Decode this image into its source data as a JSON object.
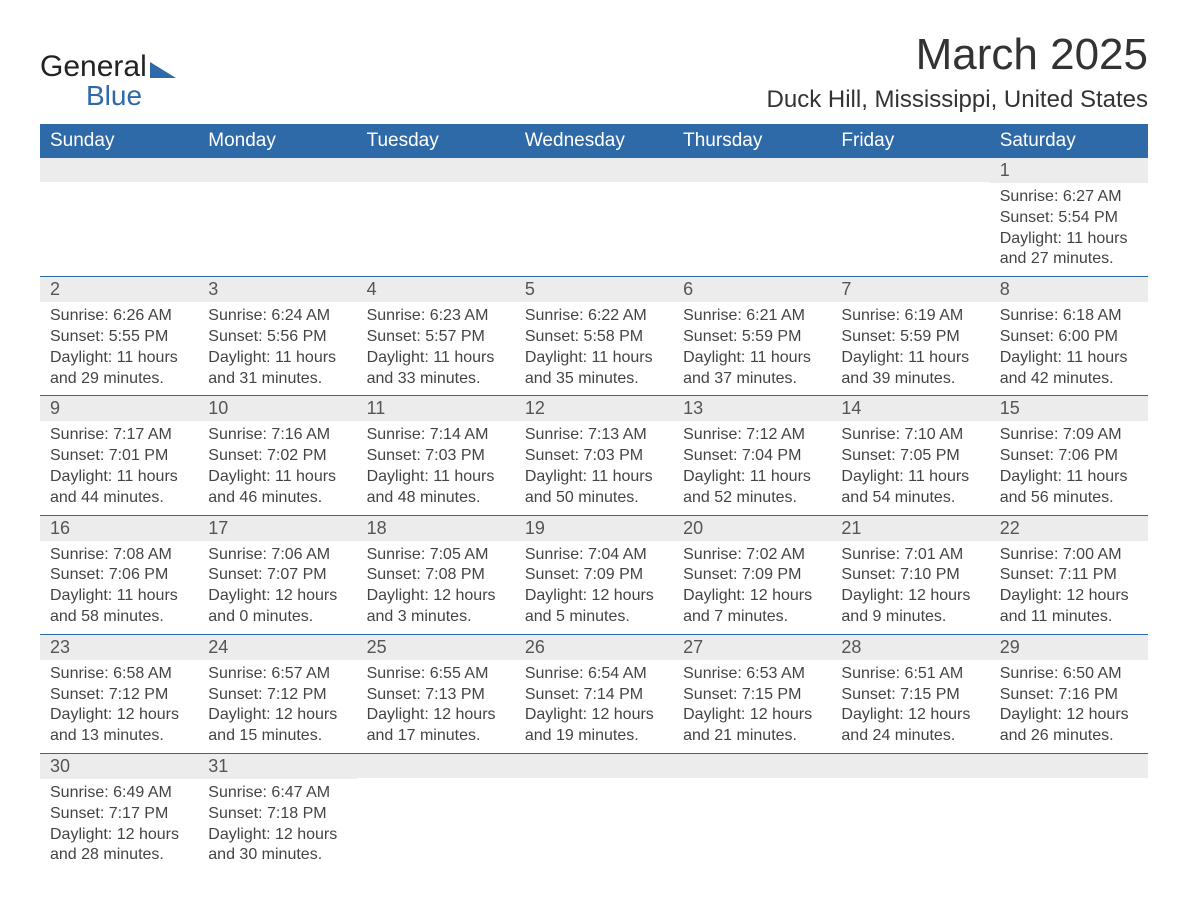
{
  "logo": {
    "general": "General",
    "blue": "Blue"
  },
  "header": {
    "month_title": "March 2025",
    "location": "Duck Hill, Mississippi, United States"
  },
  "weekdays": [
    "Sunday",
    "Monday",
    "Tuesday",
    "Wednesday",
    "Thursday",
    "Friday",
    "Saturday"
  ],
  "colors": {
    "header_bg": "#2f6aa8",
    "header_fg": "#ffffff",
    "daynum_bg": "#ececec",
    "row_border": "#2f6aa8",
    "text": "#333333"
  },
  "weeks": [
    [
      null,
      null,
      null,
      null,
      null,
      null,
      {
        "n": "1",
        "sunrise": "Sunrise: 6:27 AM",
        "sunset": "Sunset: 5:54 PM",
        "dl1": "Daylight: 11 hours",
        "dl2": "and 27 minutes."
      }
    ],
    [
      {
        "n": "2",
        "sunrise": "Sunrise: 6:26 AM",
        "sunset": "Sunset: 5:55 PM",
        "dl1": "Daylight: 11 hours",
        "dl2": "and 29 minutes."
      },
      {
        "n": "3",
        "sunrise": "Sunrise: 6:24 AM",
        "sunset": "Sunset: 5:56 PM",
        "dl1": "Daylight: 11 hours",
        "dl2": "and 31 minutes."
      },
      {
        "n": "4",
        "sunrise": "Sunrise: 6:23 AM",
        "sunset": "Sunset: 5:57 PM",
        "dl1": "Daylight: 11 hours",
        "dl2": "and 33 minutes."
      },
      {
        "n": "5",
        "sunrise": "Sunrise: 6:22 AM",
        "sunset": "Sunset: 5:58 PM",
        "dl1": "Daylight: 11 hours",
        "dl2": "and 35 minutes."
      },
      {
        "n": "6",
        "sunrise": "Sunrise: 6:21 AM",
        "sunset": "Sunset: 5:59 PM",
        "dl1": "Daylight: 11 hours",
        "dl2": "and 37 minutes."
      },
      {
        "n": "7",
        "sunrise": "Sunrise: 6:19 AM",
        "sunset": "Sunset: 5:59 PM",
        "dl1": "Daylight: 11 hours",
        "dl2": "and 39 minutes."
      },
      {
        "n": "8",
        "sunrise": "Sunrise: 6:18 AM",
        "sunset": "Sunset: 6:00 PM",
        "dl1": "Daylight: 11 hours",
        "dl2": "and 42 minutes."
      }
    ],
    [
      {
        "n": "9",
        "sunrise": "Sunrise: 7:17 AM",
        "sunset": "Sunset: 7:01 PM",
        "dl1": "Daylight: 11 hours",
        "dl2": "and 44 minutes."
      },
      {
        "n": "10",
        "sunrise": "Sunrise: 7:16 AM",
        "sunset": "Sunset: 7:02 PM",
        "dl1": "Daylight: 11 hours",
        "dl2": "and 46 minutes."
      },
      {
        "n": "11",
        "sunrise": "Sunrise: 7:14 AM",
        "sunset": "Sunset: 7:03 PM",
        "dl1": "Daylight: 11 hours",
        "dl2": "and 48 minutes."
      },
      {
        "n": "12",
        "sunrise": "Sunrise: 7:13 AM",
        "sunset": "Sunset: 7:03 PM",
        "dl1": "Daylight: 11 hours",
        "dl2": "and 50 minutes."
      },
      {
        "n": "13",
        "sunrise": "Sunrise: 7:12 AM",
        "sunset": "Sunset: 7:04 PM",
        "dl1": "Daylight: 11 hours",
        "dl2": "and 52 minutes."
      },
      {
        "n": "14",
        "sunrise": "Sunrise: 7:10 AM",
        "sunset": "Sunset: 7:05 PM",
        "dl1": "Daylight: 11 hours",
        "dl2": "and 54 minutes."
      },
      {
        "n": "15",
        "sunrise": "Sunrise: 7:09 AM",
        "sunset": "Sunset: 7:06 PM",
        "dl1": "Daylight: 11 hours",
        "dl2": "and 56 minutes."
      }
    ],
    [
      {
        "n": "16",
        "sunrise": "Sunrise: 7:08 AM",
        "sunset": "Sunset: 7:06 PM",
        "dl1": "Daylight: 11 hours",
        "dl2": "and 58 minutes."
      },
      {
        "n": "17",
        "sunrise": "Sunrise: 7:06 AM",
        "sunset": "Sunset: 7:07 PM",
        "dl1": "Daylight: 12 hours",
        "dl2": "and 0 minutes."
      },
      {
        "n": "18",
        "sunrise": "Sunrise: 7:05 AM",
        "sunset": "Sunset: 7:08 PM",
        "dl1": "Daylight: 12 hours",
        "dl2": "and 3 minutes."
      },
      {
        "n": "19",
        "sunrise": "Sunrise: 7:04 AM",
        "sunset": "Sunset: 7:09 PM",
        "dl1": "Daylight: 12 hours",
        "dl2": "and 5 minutes."
      },
      {
        "n": "20",
        "sunrise": "Sunrise: 7:02 AM",
        "sunset": "Sunset: 7:09 PM",
        "dl1": "Daylight: 12 hours",
        "dl2": "and 7 minutes."
      },
      {
        "n": "21",
        "sunrise": "Sunrise: 7:01 AM",
        "sunset": "Sunset: 7:10 PM",
        "dl1": "Daylight: 12 hours",
        "dl2": "and 9 minutes."
      },
      {
        "n": "22",
        "sunrise": "Sunrise: 7:00 AM",
        "sunset": "Sunset: 7:11 PM",
        "dl1": "Daylight: 12 hours",
        "dl2": "and 11 minutes."
      }
    ],
    [
      {
        "n": "23",
        "sunrise": "Sunrise: 6:58 AM",
        "sunset": "Sunset: 7:12 PM",
        "dl1": "Daylight: 12 hours",
        "dl2": "and 13 minutes."
      },
      {
        "n": "24",
        "sunrise": "Sunrise: 6:57 AM",
        "sunset": "Sunset: 7:12 PM",
        "dl1": "Daylight: 12 hours",
        "dl2": "and 15 minutes."
      },
      {
        "n": "25",
        "sunrise": "Sunrise: 6:55 AM",
        "sunset": "Sunset: 7:13 PM",
        "dl1": "Daylight: 12 hours",
        "dl2": "and 17 minutes."
      },
      {
        "n": "26",
        "sunrise": "Sunrise: 6:54 AM",
        "sunset": "Sunset: 7:14 PM",
        "dl1": "Daylight: 12 hours",
        "dl2": "and 19 minutes."
      },
      {
        "n": "27",
        "sunrise": "Sunrise: 6:53 AM",
        "sunset": "Sunset: 7:15 PM",
        "dl1": "Daylight: 12 hours",
        "dl2": "and 21 minutes."
      },
      {
        "n": "28",
        "sunrise": "Sunrise: 6:51 AM",
        "sunset": "Sunset: 7:15 PM",
        "dl1": "Daylight: 12 hours",
        "dl2": "and 24 minutes."
      },
      {
        "n": "29",
        "sunrise": "Sunrise: 6:50 AM",
        "sunset": "Sunset: 7:16 PM",
        "dl1": "Daylight: 12 hours",
        "dl2": "and 26 minutes."
      }
    ],
    [
      {
        "n": "30",
        "sunrise": "Sunrise: 6:49 AM",
        "sunset": "Sunset: 7:17 PM",
        "dl1": "Daylight: 12 hours",
        "dl2": "and 28 minutes."
      },
      {
        "n": "31",
        "sunrise": "Sunrise: 6:47 AM",
        "sunset": "Sunset: 7:18 PM",
        "dl1": "Daylight: 12 hours",
        "dl2": "and 30 minutes."
      },
      null,
      null,
      null,
      null,
      null
    ]
  ]
}
